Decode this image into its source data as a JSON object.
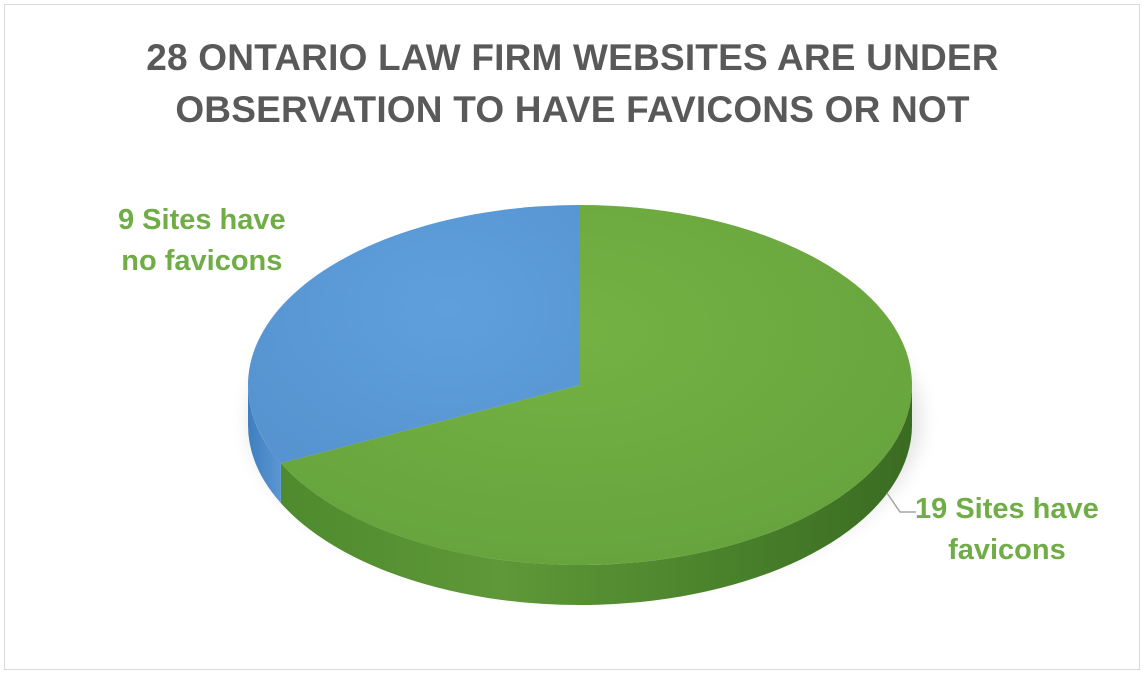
{
  "chart_data": {
    "type": "pie",
    "title_lines": [
      "28 ONTARIO LAW FIRM WEBSITES ARE UNDER",
      "OBSERVATION TO HAVE FAVICONS OR NOT"
    ],
    "categories": [
      "9 Sites have no favicons",
      "19 Sites have favicons"
    ],
    "values": [
      9,
      19
    ],
    "colors": [
      "#5b9bd5",
      "#70ad47"
    ],
    "labels": {
      "no_favicons": [
        "9 Sites have",
        "no favicons"
      ],
      "favicons": [
        "19 Sites have",
        "favicons"
      ]
    },
    "style": "3d-pie"
  }
}
